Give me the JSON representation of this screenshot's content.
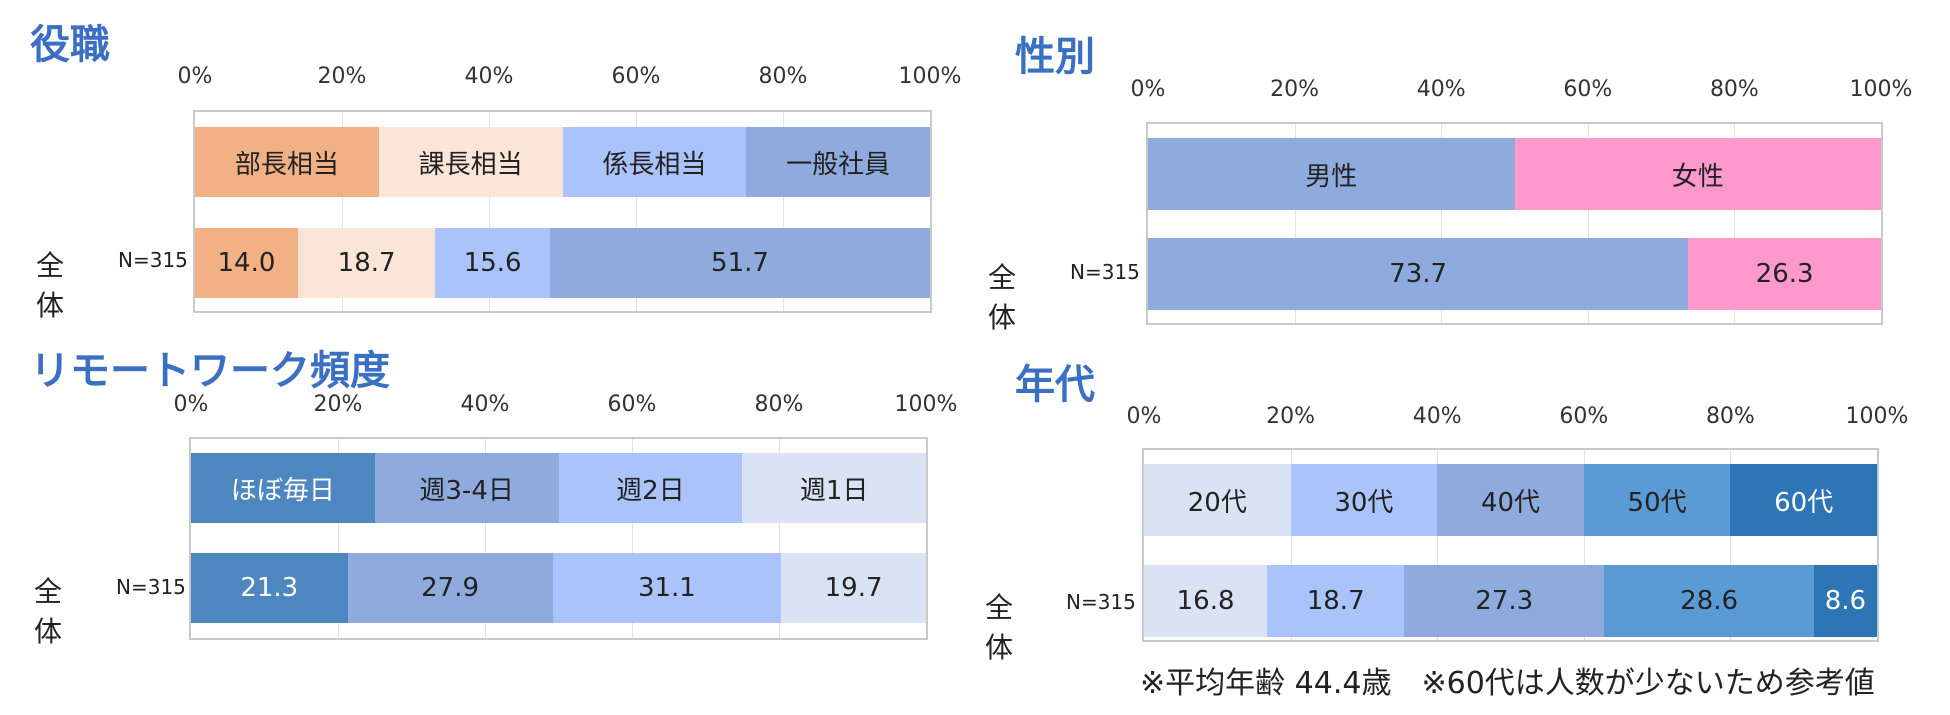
{
  "panels": [
    {
      "key": "yakushoku",
      "title": "役職",
      "ticks": [
        "0%",
        "20%",
        "40%",
        "60%",
        "80%",
        "100%"
      ],
      "row_label": "全体",
      "n_label": "N=315",
      "colors": [
        "#f2b184",
        "#fbe5d6",
        "#aac4fb",
        "#8faadc"
      ],
      "text_colors": [
        "#222222",
        "#222222",
        "#222222",
        "#222222"
      ],
      "legend": [
        "部長相当",
        "課長相当",
        "係長相当",
        "一般社員"
      ]
    },
    {
      "key": "seibetsu",
      "title": "性別",
      "ticks": [
        "0%",
        "20%",
        "40%",
        "60%",
        "80%",
        "100%"
      ],
      "row_label": "全体",
      "n_label": "N=315",
      "colors": [
        "#8faadc",
        "#ff99cc"
      ],
      "text_colors": [
        "#222222",
        "#222222"
      ],
      "legend": [
        "男性",
        "女性"
      ]
    },
    {
      "key": "remote",
      "title": "リモートワーク頻度",
      "ticks": [
        "0%",
        "20%",
        "40%",
        "60%",
        "80%",
        "100%"
      ],
      "row_label": "全体",
      "n_label": "N=315",
      "colors": [
        "#4e86c0",
        "#8faadc",
        "#aac4fb",
        "#dae3f3"
      ],
      "text_colors": [
        "#ffffff",
        "#222222",
        "#222222",
        "#222222"
      ],
      "legend": [
        "ほぼ毎日",
        "週3-4日",
        "週2日",
        "週1日"
      ]
    },
    {
      "key": "nendai",
      "title": "年代",
      "ticks": [
        "0%",
        "20%",
        "40%",
        "60%",
        "80%",
        "100%"
      ],
      "row_label": "全体",
      "n_label": "N=315",
      "colors": [
        "#dae3f3",
        "#aac4fb",
        "#8faadc",
        "#5b9bd5",
        "#2e75b6"
      ],
      "text_colors": [
        "#222222",
        "#222222",
        "#222222",
        "#222222",
        "#ffffff"
      ],
      "legend": [
        "20代",
        "30代",
        "40代",
        "50代",
        "60代"
      ],
      "note": "※平均年齢 44.4歳　※60代は人数が少ないため参考値"
    }
  ],
  "chart_data": [
    {
      "type": "bar",
      "stacked": true,
      "orientation": "horizontal",
      "title": "役職",
      "categories": [
        "全体"
      ],
      "series": [
        {
          "name": "部長相当",
          "values": [
            14.0
          ]
        },
        {
          "name": "課長相当",
          "values": [
            18.7
          ]
        },
        {
          "name": "係長相当",
          "values": [
            15.6
          ]
        },
        {
          "name": "一般社員",
          "values": [
            51.7
          ]
        }
      ],
      "xlim": [
        0,
        100
      ]
    },
    {
      "type": "bar",
      "stacked": true,
      "orientation": "horizontal",
      "title": "性別",
      "categories": [
        "全体"
      ],
      "series": [
        {
          "name": "男性",
          "values": [
            73.7
          ]
        },
        {
          "name": "女性",
          "values": [
            26.3
          ]
        }
      ],
      "xlim": [
        0,
        100
      ]
    },
    {
      "type": "bar",
      "stacked": true,
      "orientation": "horizontal",
      "title": "リモートワーク頻度",
      "categories": [
        "全体"
      ],
      "series": [
        {
          "name": "ほぼ毎日",
          "values": [
            21.3
          ]
        },
        {
          "name": "週3-4日",
          "values": [
            27.9
          ]
        },
        {
          "name": "週2日",
          "values": [
            31.1
          ]
        },
        {
          "name": "週1日",
          "values": [
            19.7
          ]
        }
      ],
      "xlim": [
        0,
        100
      ]
    },
    {
      "type": "bar",
      "stacked": true,
      "orientation": "horizontal",
      "title": "年代",
      "categories": [
        "全体"
      ],
      "series": [
        {
          "name": "20代",
          "values": [
            16.8
          ]
        },
        {
          "name": "30代",
          "values": [
            18.7
          ]
        },
        {
          "name": "40代",
          "values": [
            27.3
          ]
        },
        {
          "name": "50代",
          "values": [
            28.6
          ]
        },
        {
          "name": "60代",
          "values": [
            8.6
          ]
        }
      ],
      "xlim": [
        0,
        100
      ]
    }
  ]
}
